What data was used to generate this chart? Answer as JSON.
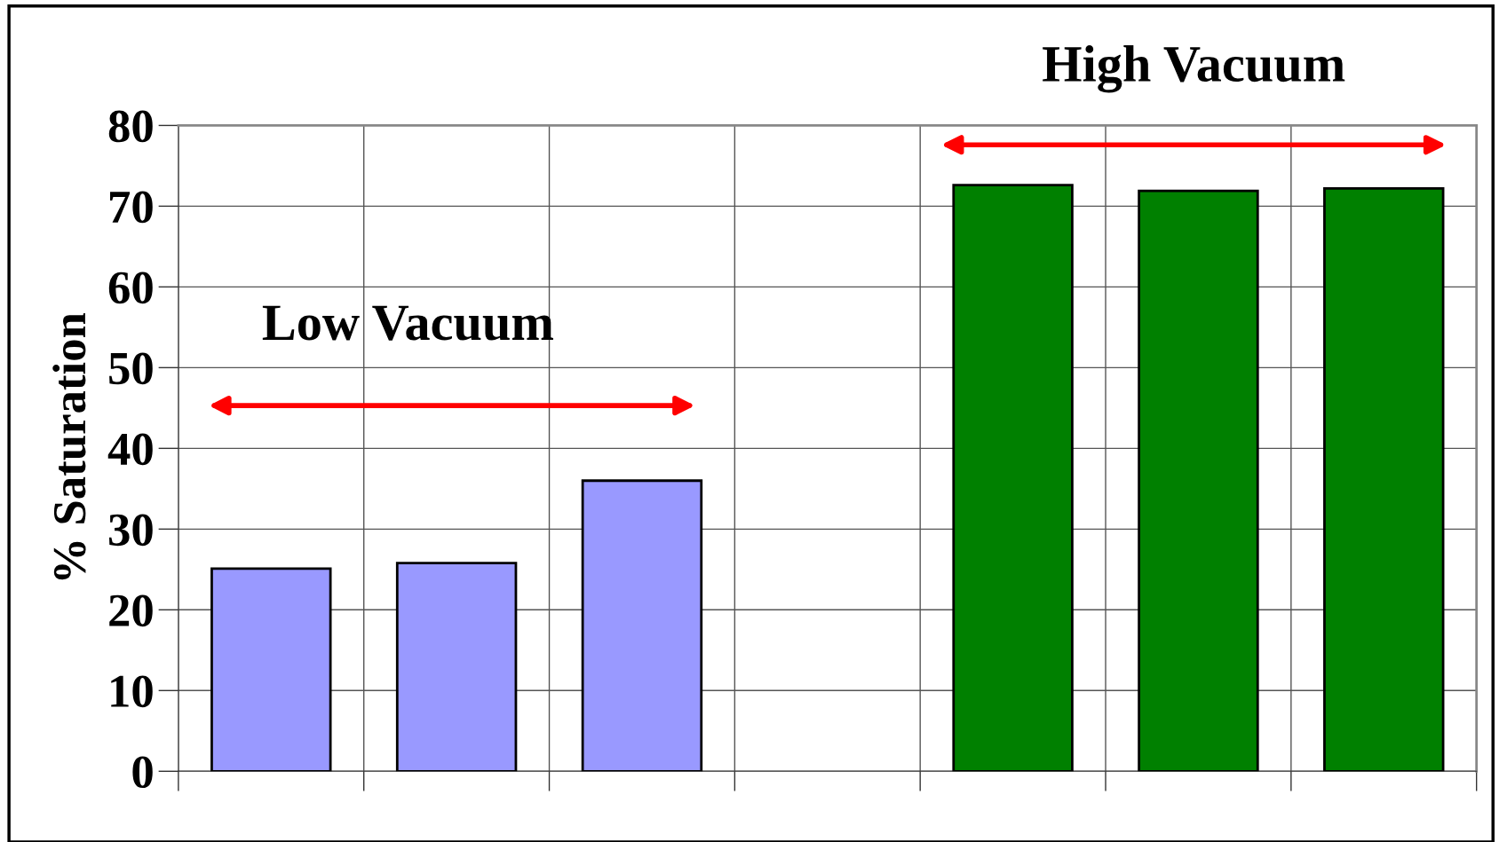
{
  "chart_data": {
    "type": "bar",
    "ylabel": "% Saturation",
    "categories": [
      null,
      null,
      null,
      null,
      null,
      null,
      null
    ],
    "values": [
      25.1,
      25.8,
      36.0,
      null,
      72.6,
      71.9,
      72.2
    ],
    "colors": [
      "#9999ff",
      "#9999ff",
      "#9999ff",
      null,
      "#008000",
      "#008000",
      "#008000"
    ],
    "ylim": [
      0,
      80
    ],
    "yticks": [
      0,
      10,
      20,
      30,
      40,
      50,
      60,
      70,
      80
    ],
    "grid": true,
    "annotations": [
      "Low Vacuum",
      "High Vacuum"
    ]
  }
}
